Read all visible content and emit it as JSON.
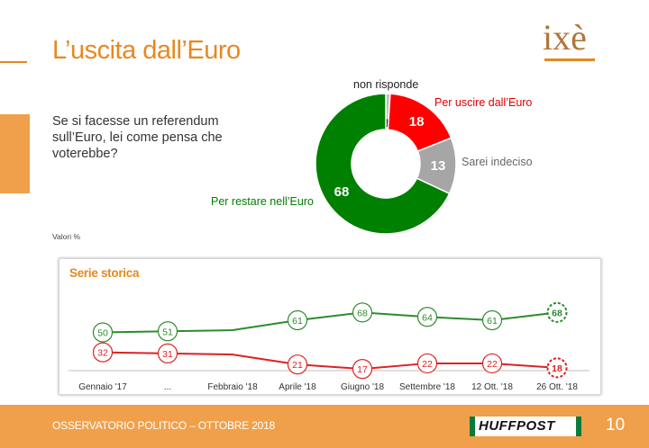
{
  "header": {
    "title": "L’uscita dall’Euro",
    "logo_text": "ixè"
  },
  "question": "Se si facesse un referendum sull’Euro, lei come pensa che voterebbe?",
  "note": "Valori %",
  "chart_data": [
    {
      "type": "pie",
      "variant": "donut",
      "slices": [
        {
          "label": "non risponde",
          "value": 1,
          "color": "#bfbfbf"
        },
        {
          "label": "Per uscire dall’Euro",
          "value": 18,
          "color": "#ff0000"
        },
        {
          "label": "Sarei indeciso",
          "value": 13,
          "color": "#a6a6a6"
        },
        {
          "label": "Per restare nell’Euro",
          "value": 68,
          "color": "#008000"
        }
      ]
    },
    {
      "type": "line",
      "title": "Serie storica",
      "categories": [
        "Gennaio '17",
        "...",
        "Febbraio '18",
        "Aprile '18",
        "Giugno '18",
        "Settembre '18",
        "12 Ott. '18",
        "26 Ott. '18"
      ],
      "ylim": [
        0,
        100
      ],
      "series": [
        {
          "name": "Per restare nell’Euro",
          "color": "#2e8b2e",
          "values": [
            50,
            51,
            52,
            61,
            68,
            64,
            61,
            68
          ],
          "labeled": [
            true,
            true,
            false,
            true,
            true,
            true,
            true,
            true
          ]
        },
        {
          "name": "Per uscire dall’Euro",
          "color": "#dd2222",
          "values": [
            32,
            31,
            30,
            21,
            17,
            22,
            22,
            18
          ],
          "labeled": [
            true,
            true,
            false,
            true,
            true,
            true,
            true,
            true
          ]
        }
      ]
    }
  ],
  "footer": {
    "text": "OSSERVATORIO POLITICO – OTTOBRE 2018",
    "brand": "HUFFPOST",
    "page": "10"
  }
}
